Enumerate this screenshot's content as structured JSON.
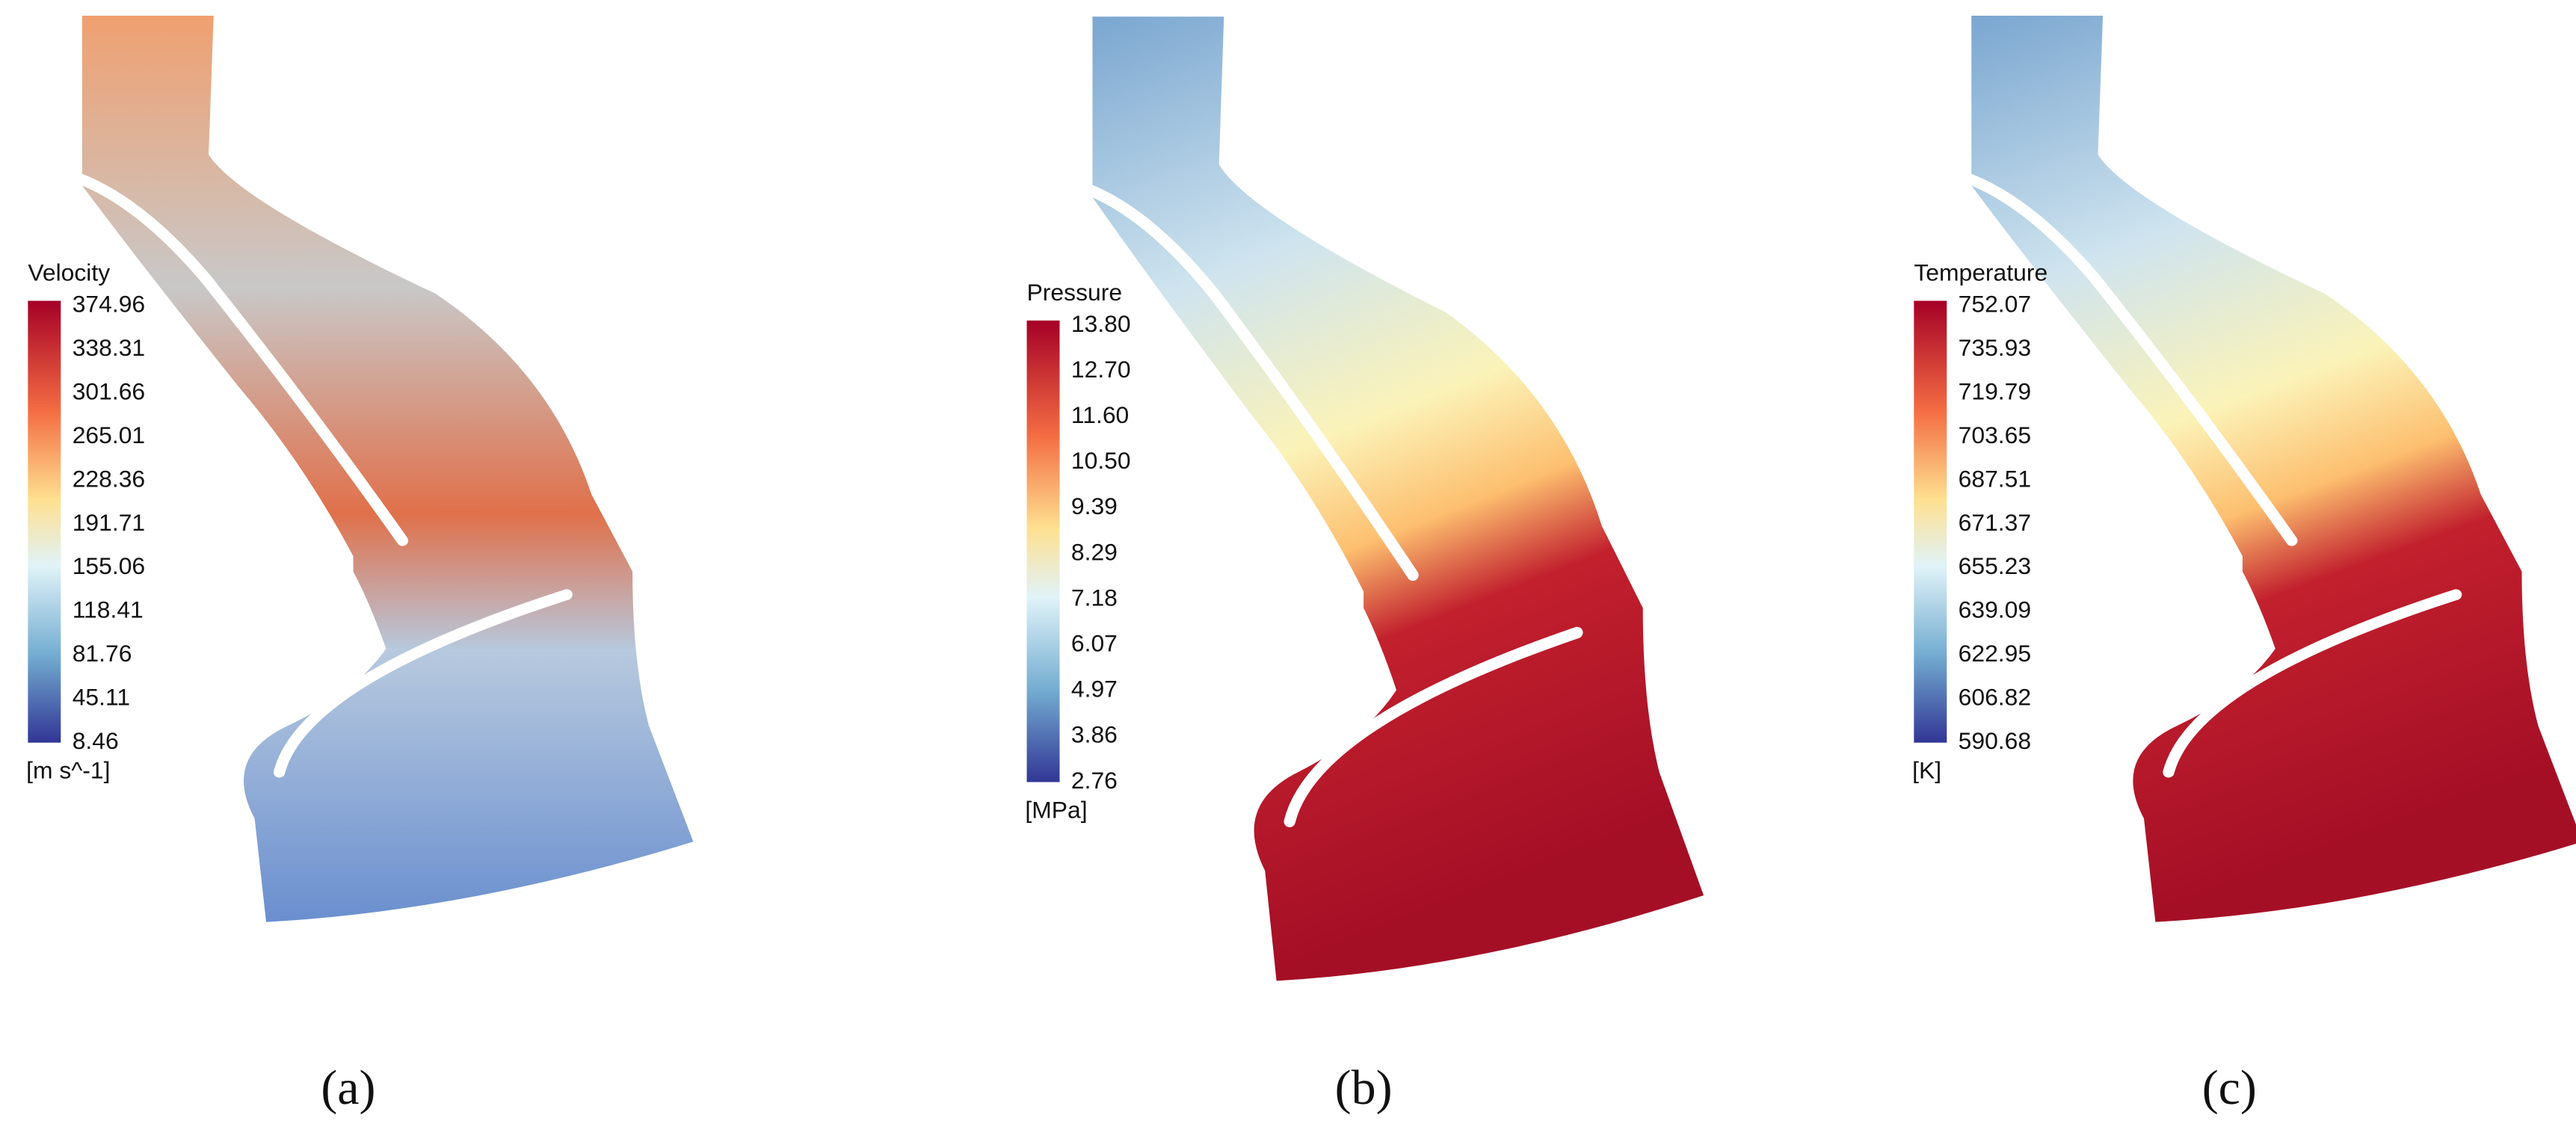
{
  "panels": [
    {
      "legend_title": "Velocity",
      "ticks": [
        "374.96",
        "338.31",
        "301.66",
        "265.01",
        "228.36",
        "191.71",
        "155.06",
        "118.41",
        "81.76",
        "45.11",
        "8.46"
      ],
      "unit": "[m s^-1]",
      "caption": "(a)"
    },
    {
      "legend_title": "Pressure",
      "ticks": [
        "13.80",
        "12.70",
        "11.60",
        "10.50",
        "9.39",
        "8.29",
        "7.18",
        "6.07",
        "4.97",
        "3.86",
        "2.76"
      ],
      "unit": "[MPa]",
      "caption": "(b)"
    },
    {
      "legend_title": "Temperature",
      "ticks": [
        "752.07",
        "735.93",
        "719.79",
        "703.65",
        "687.51",
        "671.37",
        "655.23",
        "639.09",
        "622.95",
        "606.82",
        "590.68"
      ],
      "unit": "[K]",
      "caption": "(c)"
    }
  ]
}
